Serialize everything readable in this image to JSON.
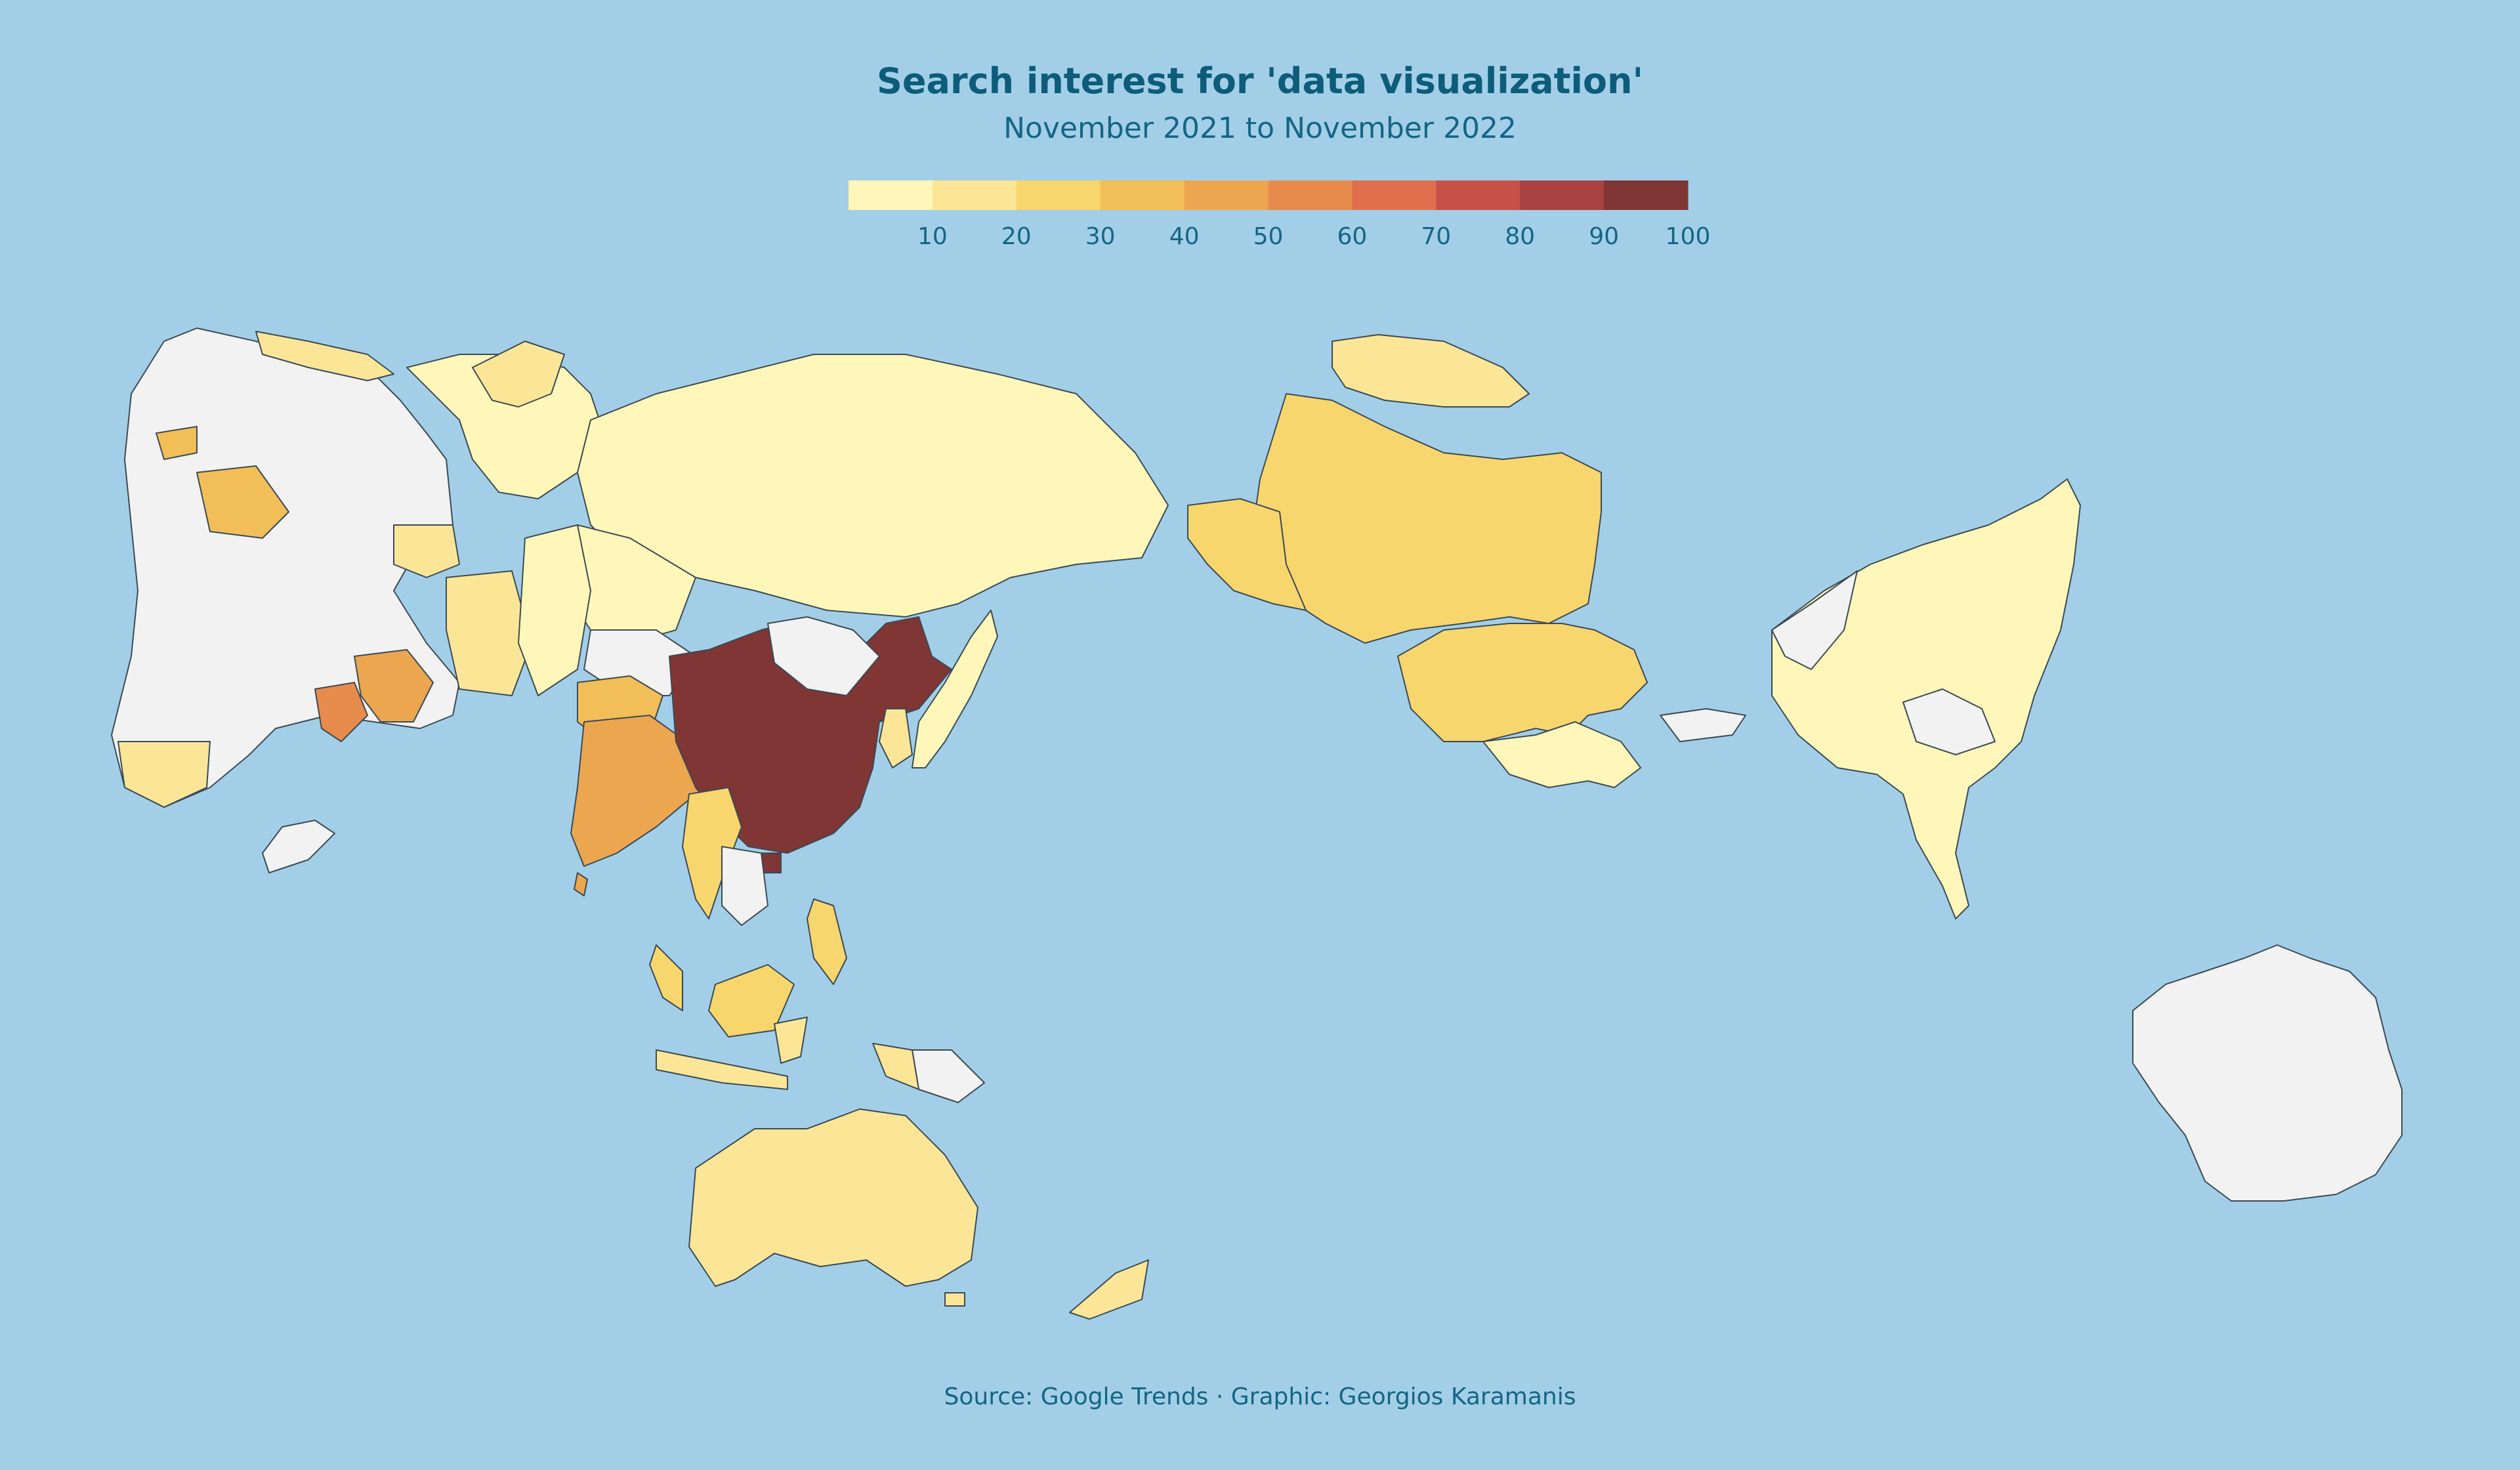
{
  "title": "Search interest for 'data visualization'",
  "subtitle": "November 2021 to November 2022",
  "source": "Source: Google Trends · Graphic: Georgios Karamanis",
  "legend": {
    "ticks": [
      "10",
      "20",
      "30",
      "40",
      "50",
      "60",
      "70",
      "80",
      "90",
      "100"
    ],
    "colors": [
      "#fff7b9",
      "#fbe697",
      "#f8d66e",
      "#f1be57",
      "#eca650",
      "#e78b4c",
      "#e0704d",
      "#c75049",
      "#a84341",
      "#7f3634"
    ]
  },
  "colors": {
    "ocean": "#a2cfe7",
    "no_data": "#f2f2f2",
    "border": "#3c4a55",
    "text": "#156585"
  }
}
